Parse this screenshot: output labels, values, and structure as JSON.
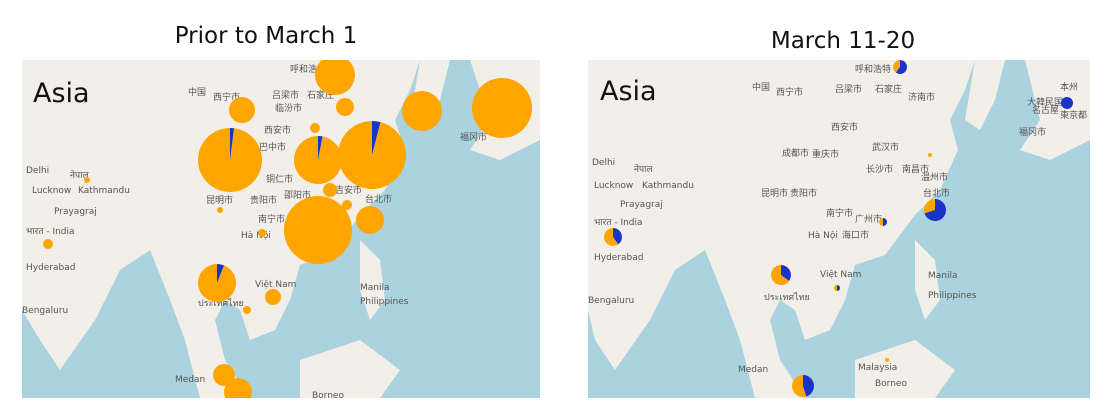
{
  "maps": [
    {
      "title": "Prior to March 1",
      "region": "Asia",
      "labels": [
        "呼和浩特",
        "西宁市",
        "吕梁市",
        "石家庄",
        "临汾市",
        "西安市",
        "中国",
        "巴中市",
        "铜仁市",
        "邵阳市",
        "吉安市",
        "昆明市",
        "贵阳市",
        "南宁市",
        "台北市",
        "Hà Nội",
        "Delhi",
        "नेपाल",
        "Lucknow",
        "Kathmandu",
        "Prayagraj",
        "भारत - India",
        "Hyderabad",
        "Việt Nam",
        "Manila",
        "Philippines",
        "Bengaluru",
        "ประเทศไทย",
        "Medan",
        "Borneo",
        "福冈市"
      ],
      "pies": [
        {
          "values": [
            100,
            0
          ],
          "size": 20
        },
        {
          "values": [
            100,
            0
          ],
          "size": 13
        },
        {
          "values": [
            100,
            0
          ],
          "size": 9
        },
        {
          "values": [
            100,
            0
          ],
          "size": 20
        },
        {
          "values": [
            100,
            0
          ],
          "size": 30
        },
        {
          "values": [
            98,
            2
          ],
          "size": 32
        },
        {
          "values": [
            97,
            3
          ],
          "size": 24
        },
        {
          "values": [
            96,
            4
          ],
          "size": 34
        },
        {
          "values": [
            100,
            0
          ],
          "size": 5
        },
        {
          "values": [
            100,
            0
          ],
          "size": 7
        },
        {
          "values": [
            100,
            0
          ],
          "size": 34
        },
        {
          "values": [
            100,
            0
          ],
          "size": 14
        },
        {
          "values": [
            100,
            0
          ],
          "size": 5
        },
        {
          "values": [
            94,
            6
          ],
          "size": 19
        },
        {
          "values": [
            100,
            0
          ],
          "size": 8
        },
        {
          "values": [
            100,
            0
          ],
          "size": 5
        },
        {
          "values": [
            100,
            0
          ],
          "size": 3
        },
        {
          "values": [
            100,
            0
          ],
          "size": 3
        },
        {
          "values": [
            100,
            0
          ],
          "size": 4
        },
        {
          "values": [
            100,
            0
          ],
          "size": 11
        },
        {
          "values": [
            100,
            0
          ],
          "size": 14
        },
        {
          "values": [
            100,
            0
          ],
          "size": 4
        }
      ]
    },
    {
      "title": "March 11-20",
      "region": "Asia",
      "labels": [
        "呼和浩特",
        "西宁市",
        "吕梁市",
        "石家庄",
        "济南市",
        "西安市",
        "中国",
        "成都市",
        "重庆市",
        "武汉市",
        "长沙市",
        "南昌市",
        "温州市",
        "昆明市",
        "贵阳市",
        "南宁市",
        "台北市",
        "广州市",
        "海口市",
        "Hà Nội",
        "Delhi",
        "नेपाल",
        "Lucknow",
        "Kathmandu",
        "Prayagraj",
        "भारत - India",
        "Hyderabad",
        "Việt Nam",
        "Manila",
        "Philippines",
        "Bengaluru",
        "ประเทศไทย",
        "Medan",
        "Malaysia",
        "Borneo",
        "福冈市",
        "大韓民国",
        "名古屋",
        "東京都",
        "本州"
      ],
      "pies": [
        {
          "values": [
            40,
            60
          ],
          "size": 7
        },
        {
          "values": [
            0,
            100
          ],
          "size": 6
        },
        {
          "values": [
            30,
            70
          ],
          "size": 11
        },
        {
          "values": [
            50,
            50
          ],
          "size": 4
        },
        {
          "values": [
            60,
            40
          ],
          "size": 9
        },
        {
          "values": [
            65,
            35
          ],
          "size": 10
        },
        {
          "values": [
            50,
            50
          ],
          "size": 3
        },
        {
          "values": [
            55,
            45
          ],
          "size": 11
        },
        {
          "values": [
            100,
            0
          ],
          "size": 2
        },
        {
          "values": [
            100,
            0
          ],
          "size": 2
        }
      ]
    }
  ],
  "colors": [
    "#ffa500",
    "#1a33c8"
  ]
}
